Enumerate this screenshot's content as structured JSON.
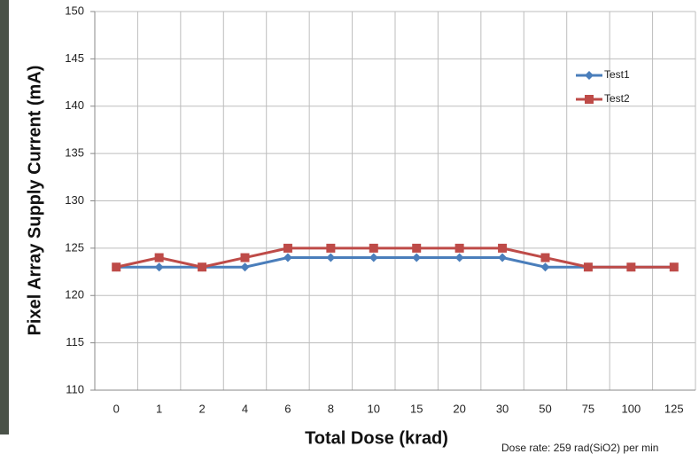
{
  "chart_data": {
    "type": "line",
    "y_label": "Pixel Array Supply Current (mA)",
    "x_label": "Total Dose (krad)",
    "annotation": "Dose rate: 259 rad(SiO2) per min",
    "categories": [
      "0",
      "1",
      "2",
      "4",
      "6",
      "8",
      "10",
      "15",
      "20",
      "30",
      "50",
      "75",
      "100",
      "125"
    ],
    "series": [
      {
        "name": "Test1",
        "color": "#4a7ebb",
        "marker": "diamond",
        "values": [
          123,
          123,
          123,
          123,
          124,
          124,
          124,
          124,
          124,
          124,
          123,
          123,
          123,
          123
        ]
      },
      {
        "name": "Test2",
        "color": "#be4b48",
        "marker": "square",
        "values": [
          123,
          124,
          123,
          124,
          125,
          125,
          125,
          125,
          125,
          125,
          124,
          123,
          123,
          123
        ]
      }
    ],
    "ylim": [
      110,
      150
    ],
    "yticks": [
      110,
      115,
      120,
      125,
      130,
      135,
      140,
      145,
      150
    ],
    "grid": true,
    "legend": "upper right"
  }
}
